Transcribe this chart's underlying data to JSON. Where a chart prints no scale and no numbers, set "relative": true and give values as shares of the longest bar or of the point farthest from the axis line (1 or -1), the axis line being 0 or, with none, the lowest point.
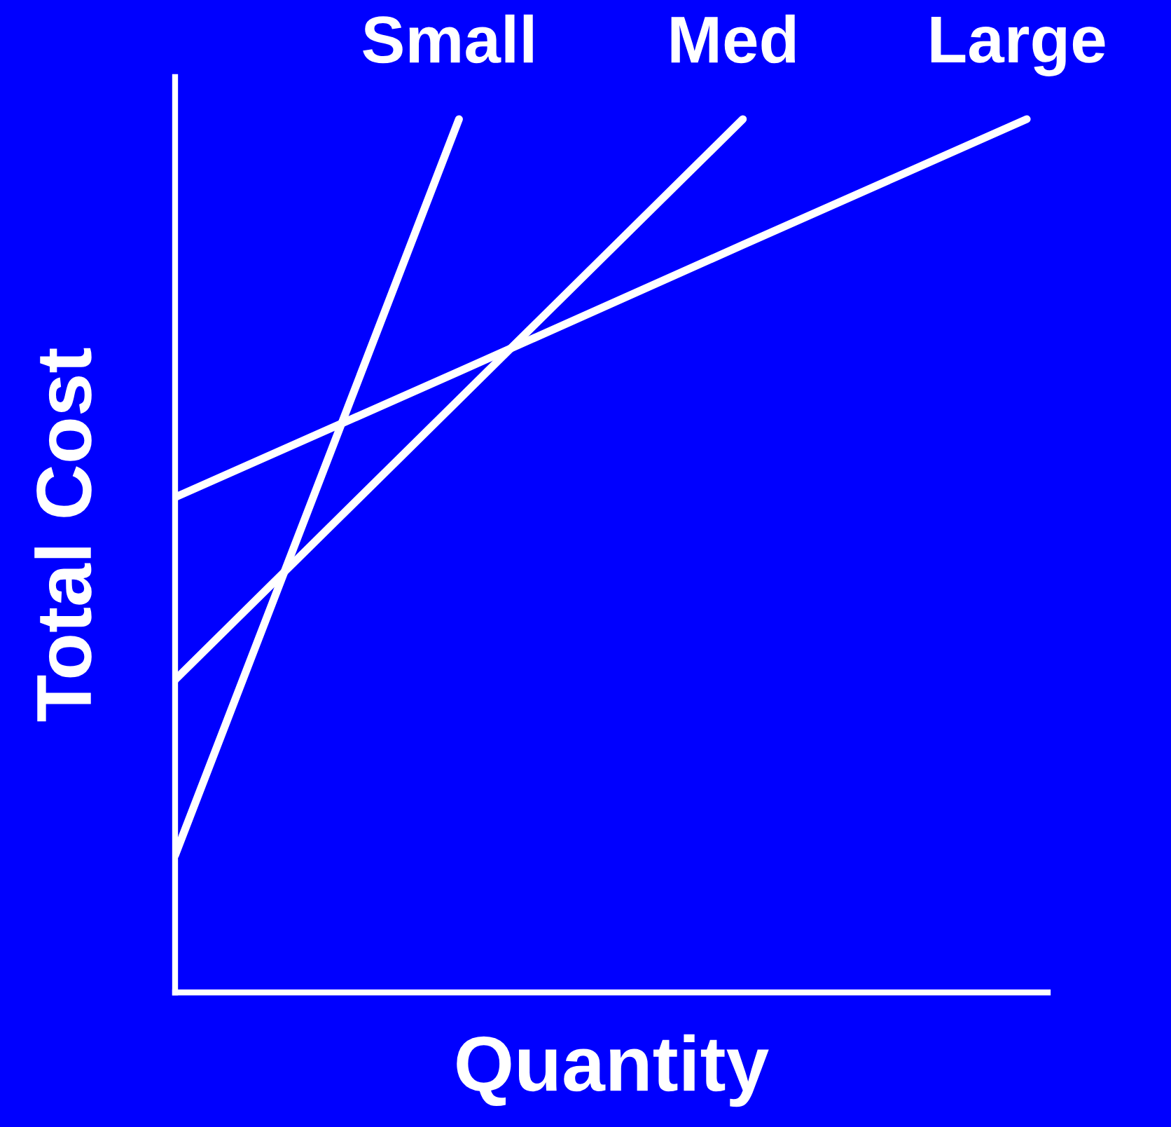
{
  "chart_data": {
    "type": "line",
    "relative": true,
    "xlabel": "Quantity",
    "ylabel": "Total Cost",
    "categories": [
      null,
      null,
      null,
      null
    ],
    "marker": "none",
    "line_style": "solid",
    "series": [
      {
        "name": "Small",
        "color": "#ffffff",
        "values": [
          0.157,
          1,
          null,
          null
        ]
      },
      {
        "name": "Med",
        "color": "#ffffff",
        "values": [
          0.358,
          0.679,
          1,
          null
        ]
      },
      {
        "name": "Large",
        "color": "#ffffff",
        "values": [
          0.567,
          0.711,
          0.856,
          1
        ]
      }
    ]
  }
}
